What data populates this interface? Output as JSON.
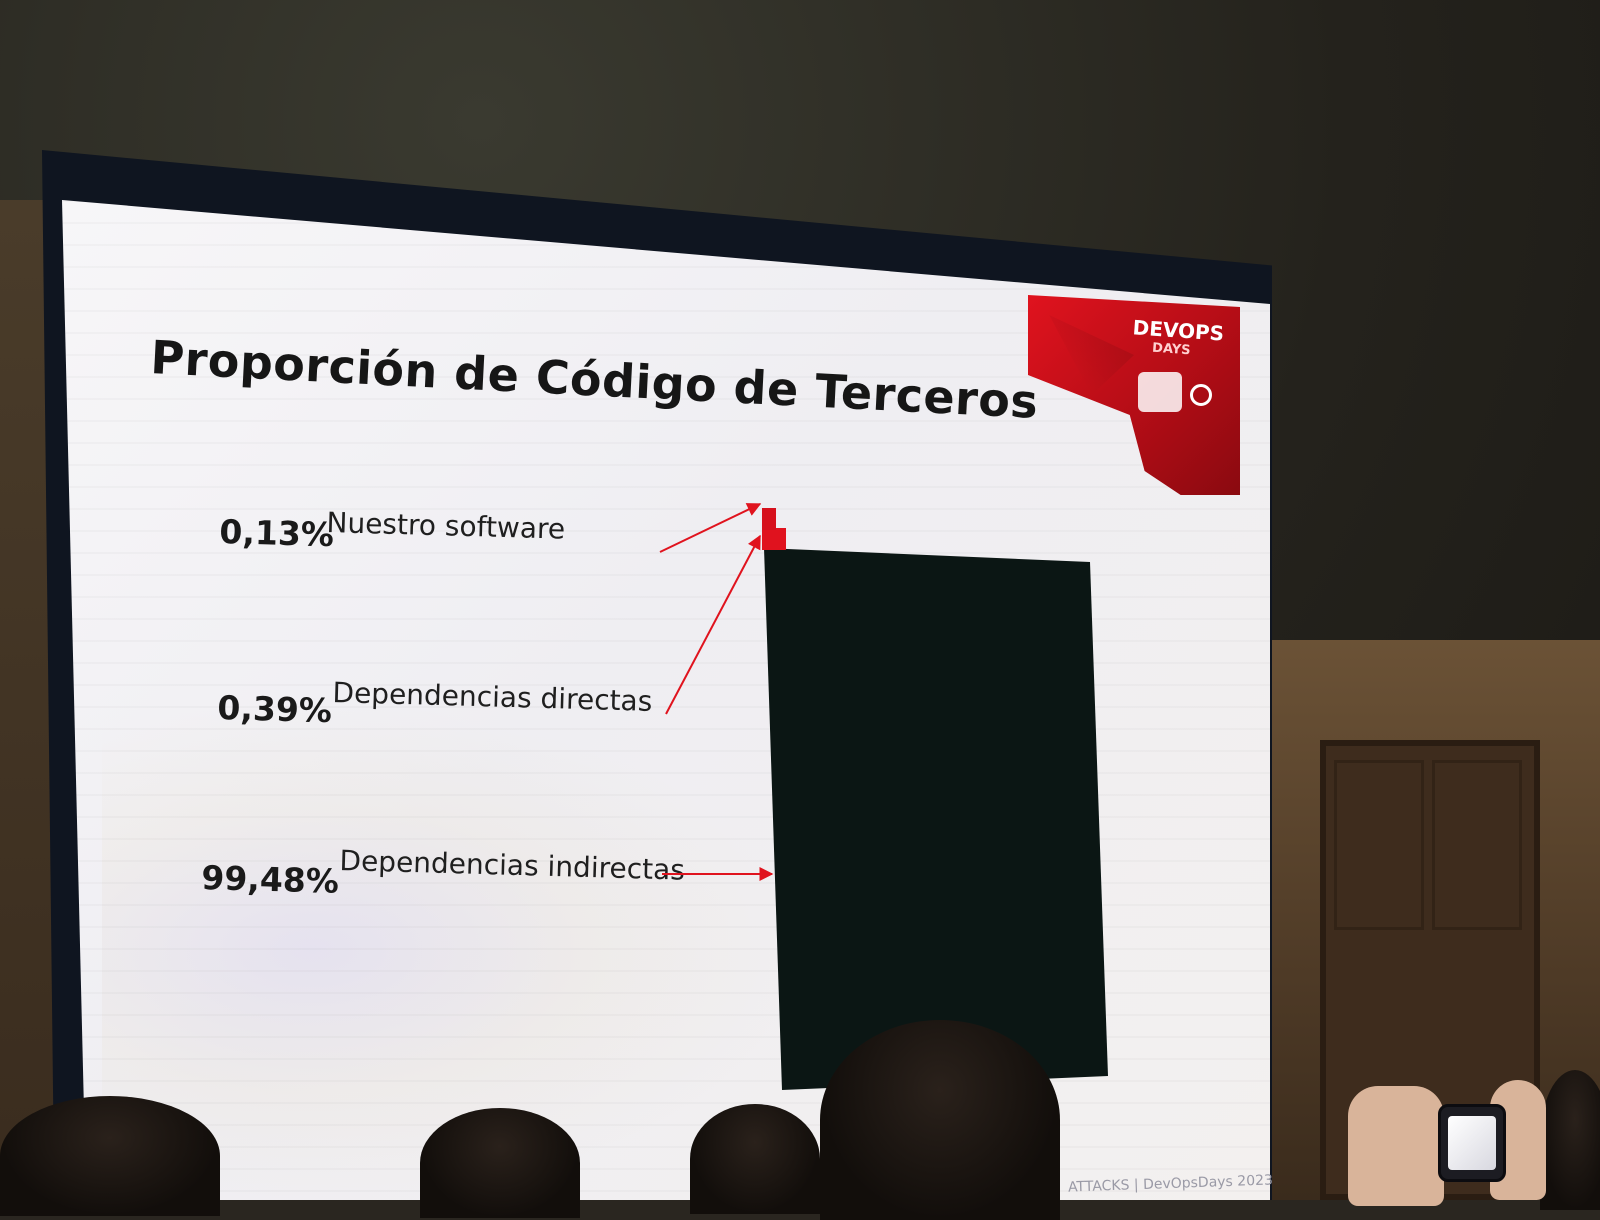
{
  "slide": {
    "title": "Proporción de Código de Terceros",
    "logo": {
      "line1": "DEVOPS",
      "line2": "DAYS"
    },
    "footer": "ATTACKS | DevOpsDays 2023"
  },
  "chart_data": {
    "type": "bar",
    "title": "Proporción de Código de Terceros",
    "categories": [
      "Nuestro software",
      "Dependencias directas",
      "Dependencias indirectas"
    ],
    "values": [
      0.13,
      0.39,
      99.48
    ],
    "labels": [
      "0,13%",
      "0,39%",
      "99,48%"
    ],
    "colors": [
      "#d6101c",
      "#e0121e",
      "#0b1614"
    ],
    "stacked": true,
    "legend": "left"
  },
  "colors": {
    "accent_red": "#e0131e",
    "bar_dark": "#0b1614",
    "slide_bg": "#f4f3f6"
  }
}
